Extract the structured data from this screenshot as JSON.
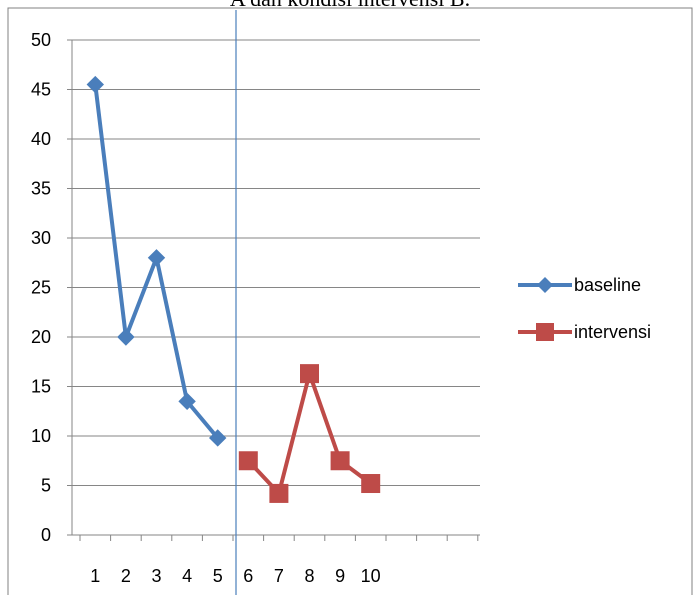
{
  "caption": "A dan kondisi intervensi B.",
  "chart_data": {
    "type": "line",
    "categories": [
      "1",
      "2",
      "3",
      "4",
      "5",
      "6",
      "7",
      "8",
      "9",
      "10"
    ],
    "ylim": [
      0,
      50
    ],
    "yticks": [
      0,
      5,
      10,
      15,
      20,
      25,
      30,
      35,
      40,
      45,
      50
    ],
    "grid": true,
    "legend_position": "right",
    "series": [
      {
        "name": "baseline",
        "color": "#4a7ebb",
        "marker": "diamond",
        "points": [
          {
            "x": 1,
            "y": 45.5
          },
          {
            "x": 2,
            "y": 20
          },
          {
            "x": 3,
            "y": 28
          },
          {
            "x": 4,
            "y": 13.5
          },
          {
            "x": 5,
            "y": 9.8
          }
        ]
      },
      {
        "name": "intervensi",
        "color": "#be4b48",
        "marker": "square",
        "points": [
          {
            "x": 6,
            "y": 7.5
          },
          {
            "x": 7,
            "y": 4.2
          },
          {
            "x": 8,
            "y": 16.3
          },
          {
            "x": 9,
            "y": 7.5
          },
          {
            "x": 10,
            "y": 5.2
          }
        ]
      }
    ],
    "phase_line_x": 5.5
  }
}
